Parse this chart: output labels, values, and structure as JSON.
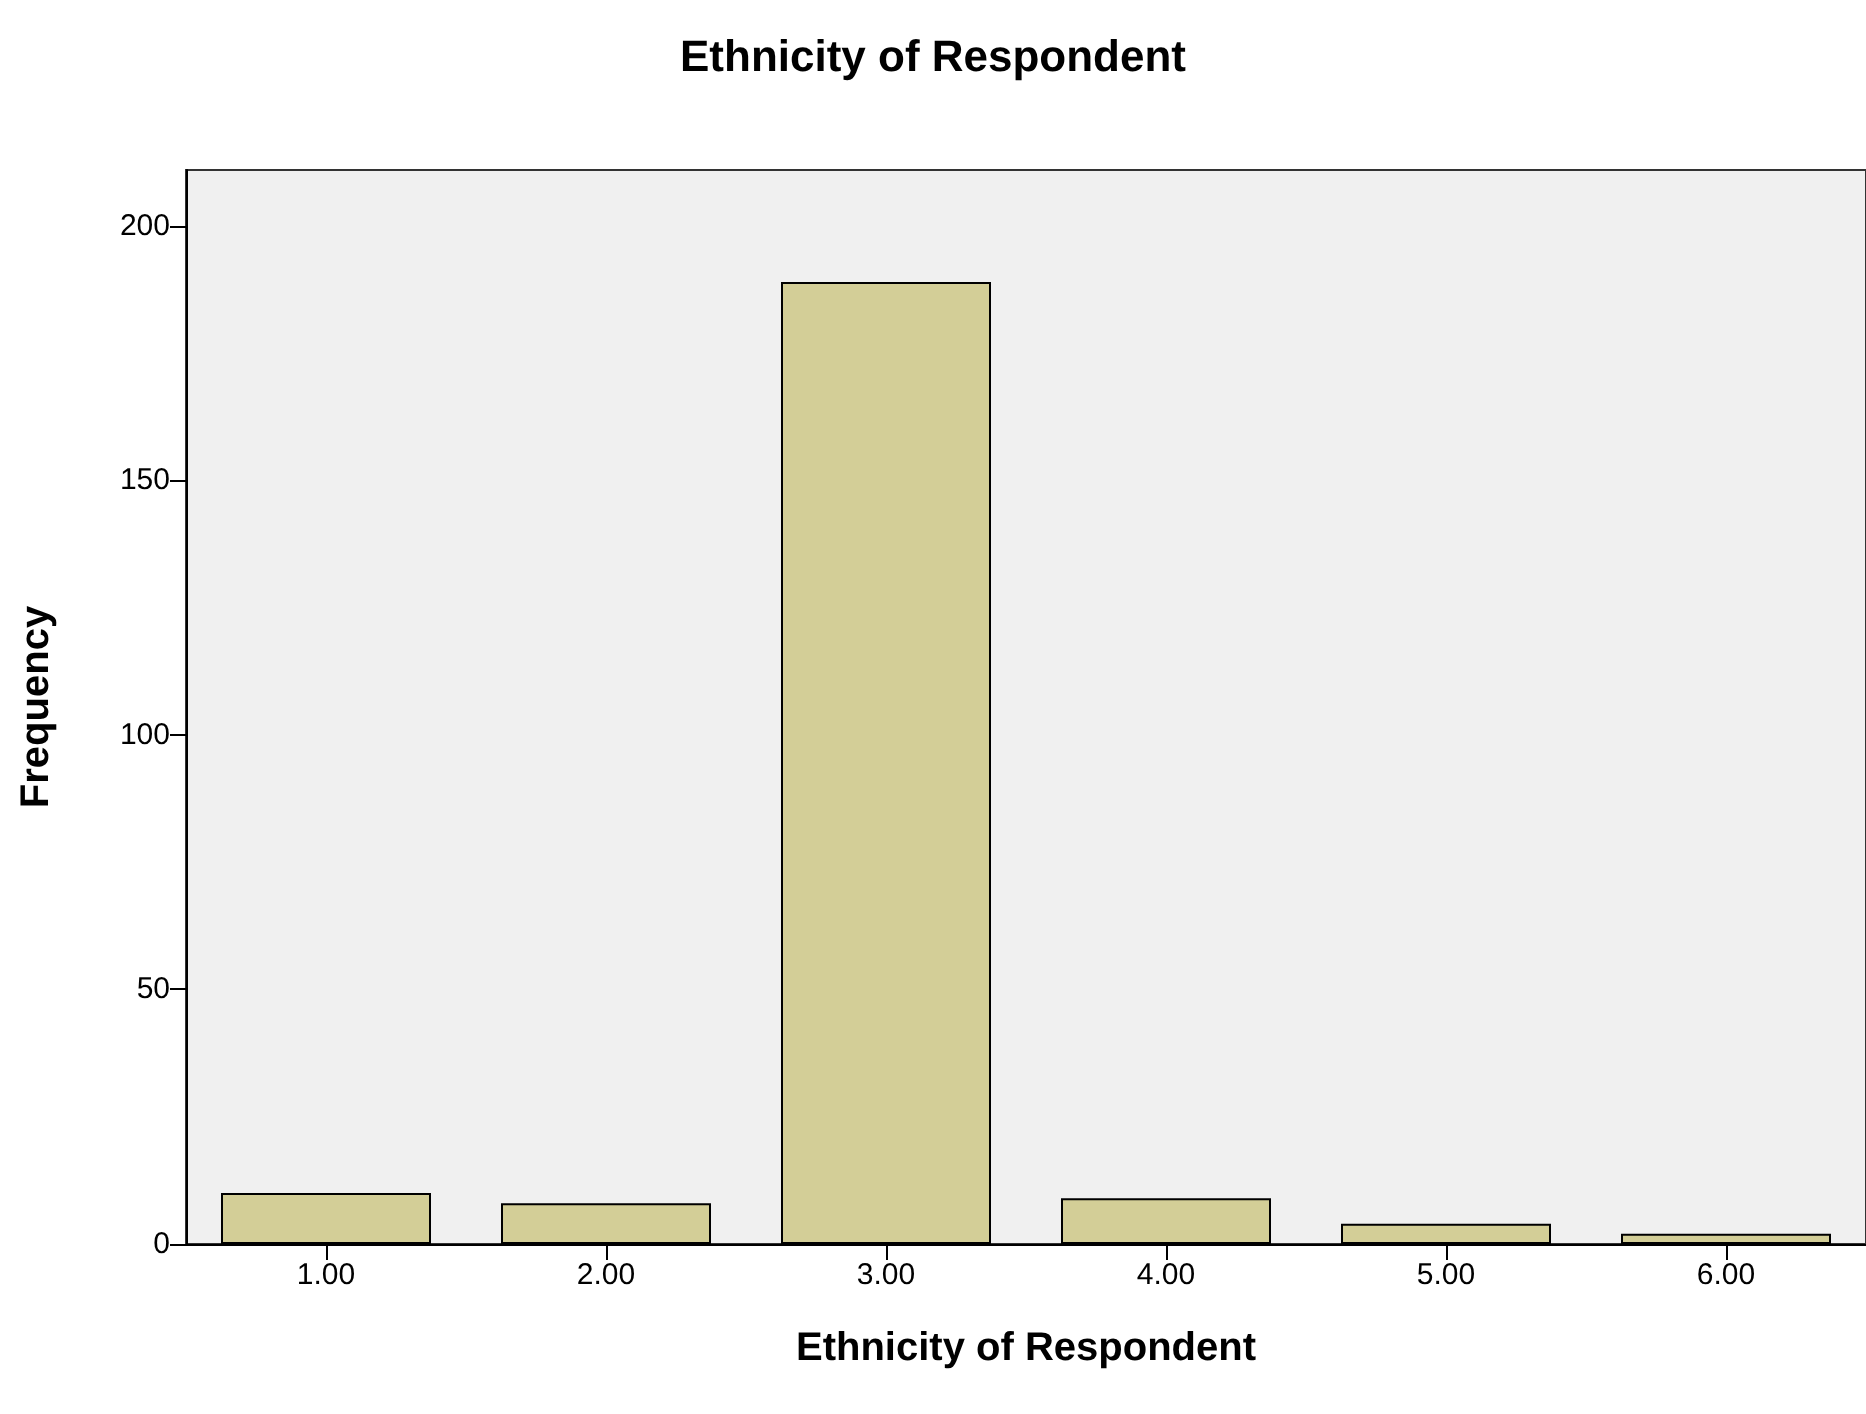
{
  "chart_data": {
    "type": "bar",
    "title": "Ethnicity of Respondent",
    "xlabel": "Ethnicity of Respondent",
    "ylabel": "Frequency",
    "categories": [
      "1.00",
      "2.00",
      "3.00",
      "4.00",
      "5.00",
      "6.00"
    ],
    "values": [
      10,
      8,
      189,
      9,
      4,
      2
    ],
    "color": "#d3ce97",
    "ylim": [
      0,
      211
    ],
    "yticks": [
      0,
      50,
      100,
      150,
      200
    ]
  }
}
